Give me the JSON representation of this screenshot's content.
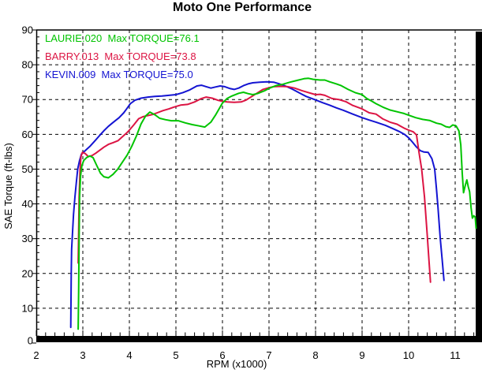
{
  "window": {
    "title": "Moto One Performance"
  },
  "chart_data": {
    "type": "line",
    "title": "Moto One Performance",
    "xlabel": "RPM (x1000)",
    "ylabel": "SAE Torque (ft-lbs)",
    "xlim": [
      2,
      11.47
    ],
    "ylim": [
      0,
      90
    ],
    "xticks": [
      2,
      3,
      4,
      5,
      6,
      7,
      8,
      9,
      10,
      11
    ],
    "yticks": [
      0,
      10,
      20,
      30,
      40,
      50,
      60,
      70,
      80,
      90
    ],
    "x_minor_step": 0.2,
    "y_minor_step": 2,
    "grid": "dashed",
    "legend_position": "top-left",
    "axis_color": "#000000",
    "series": [
      {
        "name": "LAURIE.020",
        "label": "LAURIE.020  Max TORQUE=76.1",
        "max_torque": 76.1,
        "color": "#00C400",
        "points": [
          [
            2.9,
            4
          ],
          [
            2.91,
            15
          ],
          [
            2.92,
            30
          ],
          [
            2.93,
            42
          ],
          [
            2.95,
            48
          ],
          [
            2.98,
            51
          ],
          [
            3.02,
            52.5
          ],
          [
            3.08,
            53.3
          ],
          [
            3.15,
            53.8
          ],
          [
            3.22,
            53.3
          ],
          [
            3.3,
            51.0
          ],
          [
            3.38,
            48.8
          ],
          [
            3.45,
            47.8
          ],
          [
            3.55,
            47.5
          ],
          [
            3.65,
            48.5
          ],
          [
            3.75,
            50.0
          ],
          [
            3.85,
            52.0
          ],
          [
            3.95,
            54.0
          ],
          [
            4.05,
            56.5
          ],
          [
            4.15,
            59.5
          ],
          [
            4.25,
            63.0
          ],
          [
            4.35,
            65.3
          ],
          [
            4.44,
            66.4
          ],
          [
            4.55,
            65.6
          ],
          [
            4.65,
            64.6
          ],
          [
            4.78,
            64.2
          ],
          [
            4.9,
            63.9
          ],
          [
            5.05,
            63.9
          ],
          [
            5.2,
            63.3
          ],
          [
            5.35,
            62.8
          ],
          [
            5.5,
            62.4
          ],
          [
            5.62,
            62.1
          ],
          [
            5.75,
            63.5
          ],
          [
            5.85,
            65.5
          ],
          [
            6.0,
            69.0
          ],
          [
            6.1,
            70.3
          ],
          [
            6.2,
            71.0
          ],
          [
            6.35,
            71.8
          ],
          [
            6.45,
            72.1
          ],
          [
            6.55,
            71.7
          ],
          [
            6.65,
            71.4
          ],
          [
            6.75,
            71.7
          ],
          [
            6.9,
            72.5
          ],
          [
            7.0,
            73.2
          ],
          [
            7.15,
            74.0
          ],
          [
            7.3,
            74.4
          ],
          [
            7.45,
            75.0
          ],
          [
            7.6,
            75.5
          ],
          [
            7.75,
            76.0
          ],
          [
            7.85,
            76.1
          ],
          [
            7.95,
            75.8
          ],
          [
            8.1,
            75.6
          ],
          [
            8.2,
            75.6
          ],
          [
            8.3,
            75.1
          ],
          [
            8.45,
            74.5
          ],
          [
            8.55,
            74.0
          ],
          [
            8.7,
            72.9
          ],
          [
            8.85,
            72.0
          ],
          [
            9.0,
            71.4
          ],
          [
            9.1,
            70.3
          ],
          [
            9.2,
            69.6
          ],
          [
            9.3,
            68.8
          ],
          [
            9.45,
            67.8
          ],
          [
            9.6,
            67.0
          ],
          [
            9.75,
            66.5
          ],
          [
            9.9,
            66.0
          ],
          [
            10.0,
            65.5
          ],
          [
            10.15,
            64.8
          ],
          [
            10.3,
            64.3
          ],
          [
            10.45,
            64.0
          ],
          [
            10.6,
            63.2
          ],
          [
            10.7,
            62.9
          ],
          [
            10.8,
            62.2
          ],
          [
            10.88,
            62.0
          ],
          [
            10.95,
            62.7
          ],
          [
            11.02,
            62.4
          ],
          [
            11.08,
            61.0
          ],
          [
            11.12,
            57.0
          ],
          [
            11.15,
            49.0
          ],
          [
            11.18,
            43.2
          ],
          [
            11.22,
            45.5
          ],
          [
            11.25,
            46.9
          ],
          [
            11.28,
            45.0
          ],
          [
            11.31,
            43.5
          ],
          [
            11.34,
            39.0
          ],
          [
            11.37,
            35.9
          ],
          [
            11.4,
            36.6
          ],
          [
            11.43,
            36.2
          ],
          [
            11.45,
            33.0
          ]
        ]
      },
      {
        "name": "BARRY.013",
        "label": "BARRY.013  Max TORQUE=73.8",
        "max_torque": 73.8,
        "color": "#DC1443",
        "points": [
          [
            2.9,
            23
          ],
          [
            2.91,
            32
          ],
          [
            2.92,
            42
          ],
          [
            2.94,
            50
          ],
          [
            2.96,
            53.5
          ],
          [
            2.99,
            54.8
          ],
          [
            3.05,
            54.5
          ],
          [
            3.12,
            53.6
          ],
          [
            3.2,
            53.9
          ],
          [
            3.28,
            54.6
          ],
          [
            3.35,
            55.3
          ],
          [
            3.45,
            56.3
          ],
          [
            3.55,
            57.1
          ],
          [
            3.65,
            57.6
          ],
          [
            3.76,
            58.2
          ],
          [
            3.85,
            59.3
          ],
          [
            3.95,
            60.5
          ],
          [
            4.0,
            61.2
          ],
          [
            4.1,
            62.8
          ],
          [
            4.2,
            64.5
          ],
          [
            4.3,
            65.1
          ],
          [
            4.4,
            65.4
          ],
          [
            4.5,
            65.7
          ],
          [
            4.6,
            66.2
          ],
          [
            4.72,
            66.8
          ],
          [
            4.85,
            67.3
          ],
          [
            4.95,
            67.8
          ],
          [
            5.1,
            68.4
          ],
          [
            5.25,
            68.6
          ],
          [
            5.4,
            69.3
          ],
          [
            5.55,
            70.3
          ],
          [
            5.65,
            70.7
          ],
          [
            5.78,
            70.4
          ],
          [
            5.9,
            69.8
          ],
          [
            6.0,
            69.5
          ],
          [
            6.1,
            69.3
          ],
          [
            6.25,
            69.2
          ],
          [
            6.4,
            69.3
          ],
          [
            6.5,
            69.8
          ],
          [
            6.62,
            70.8
          ],
          [
            6.75,
            71.9
          ],
          [
            6.87,
            72.9
          ],
          [
            7.0,
            73.4
          ],
          [
            7.1,
            73.7
          ],
          [
            7.25,
            73.8
          ],
          [
            7.4,
            73.7
          ],
          [
            7.55,
            73.3
          ],
          [
            7.7,
            72.6
          ],
          [
            7.85,
            72.0
          ],
          [
            8.0,
            71.4
          ],
          [
            8.1,
            71.5
          ],
          [
            8.2,
            71.2
          ],
          [
            8.35,
            70.3
          ],
          [
            8.5,
            70.0
          ],
          [
            8.65,
            69.4
          ],
          [
            8.8,
            68.3
          ],
          [
            9.0,
            67.3
          ],
          [
            9.15,
            66.2
          ],
          [
            9.3,
            65.8
          ],
          [
            9.45,
            64.4
          ],
          [
            9.6,
            63.5
          ],
          [
            9.75,
            62.9
          ],
          [
            9.9,
            61.8
          ],
          [
            10.0,
            61.2
          ],
          [
            10.1,
            60.7
          ],
          [
            10.17,
            59.8
          ],
          [
            10.22,
            55.0
          ],
          [
            10.28,
            50.0
          ],
          [
            10.34,
            42.0
          ],
          [
            10.4,
            31.0
          ],
          [
            10.44,
            23.0
          ],
          [
            10.47,
            17.5
          ]
        ]
      },
      {
        "name": "KEVIN.009",
        "label": "KEVIN.009  Max TORQUE=75.0",
        "max_torque": 75.0,
        "color": "#1414D2",
        "points": [
          [
            2.74,
            4.5
          ],
          [
            2.745,
            12
          ],
          [
            2.75,
            20
          ],
          [
            2.76,
            27
          ],
          [
            2.78,
            32
          ],
          [
            2.8,
            37
          ],
          [
            2.83,
            42
          ],
          [
            2.86,
            46
          ],
          [
            2.89,
            50
          ],
          [
            2.93,
            52.5
          ],
          [
            2.97,
            54.3
          ],
          [
            3.05,
            55.3
          ],
          [
            3.15,
            56.5
          ],
          [
            3.25,
            58.0
          ],
          [
            3.35,
            59.5
          ],
          [
            3.45,
            61.0
          ],
          [
            3.55,
            62.3
          ],
          [
            3.65,
            63.4
          ],
          [
            3.78,
            64.8
          ],
          [
            3.88,
            66.2
          ],
          [
            3.95,
            67.5
          ],
          [
            4.02,
            68.8
          ],
          [
            4.12,
            69.8
          ],
          [
            4.25,
            70.4
          ],
          [
            4.4,
            70.7
          ],
          [
            4.55,
            70.9
          ],
          [
            4.7,
            71.0
          ],
          [
            4.85,
            71.2
          ],
          [
            5.0,
            71.4
          ],
          [
            5.15,
            72.0
          ],
          [
            5.3,
            72.8
          ],
          [
            5.45,
            73.9
          ],
          [
            5.55,
            74.1
          ],
          [
            5.65,
            73.7
          ],
          [
            5.75,
            73.3
          ],
          [
            5.85,
            73.6
          ],
          [
            5.95,
            73.9
          ],
          [
            6.05,
            73.7
          ],
          [
            6.15,
            73.2
          ],
          [
            6.25,
            72.9
          ],
          [
            6.35,
            73.3
          ],
          [
            6.45,
            74.0
          ],
          [
            6.55,
            74.5
          ],
          [
            6.65,
            74.8
          ],
          [
            6.8,
            75.0
          ],
          [
            6.95,
            75.1
          ],
          [
            7.1,
            75.0
          ],
          [
            7.2,
            74.6
          ],
          [
            7.35,
            73.9
          ],
          [
            7.5,
            73.0
          ],
          [
            7.65,
            71.9
          ],
          [
            7.8,
            70.9
          ],
          [
            8.0,
            69.9
          ],
          [
            8.15,
            69.1
          ],
          [
            8.3,
            68.4
          ],
          [
            8.45,
            67.6
          ],
          [
            8.6,
            66.9
          ],
          [
            8.8,
            65.8
          ],
          [
            9.0,
            64.8
          ],
          [
            9.15,
            64.1
          ],
          [
            9.3,
            63.5
          ],
          [
            9.5,
            62.6
          ],
          [
            9.65,
            61.7
          ],
          [
            9.8,
            60.8
          ],
          [
            9.92,
            59.9
          ],
          [
            10.0,
            59.0
          ],
          [
            10.08,
            57.8
          ],
          [
            10.16,
            56.5
          ],
          [
            10.25,
            55.3
          ],
          [
            10.33,
            54.9
          ],
          [
            10.42,
            54.8
          ],
          [
            10.5,
            53.0
          ],
          [
            10.56,
            50.0
          ],
          [
            10.6,
            44.0
          ],
          [
            10.63,
            39.0
          ],
          [
            10.68,
            30.0
          ],
          [
            10.72,
            24.0
          ],
          [
            10.76,
            18.0
          ]
        ]
      }
    ]
  }
}
